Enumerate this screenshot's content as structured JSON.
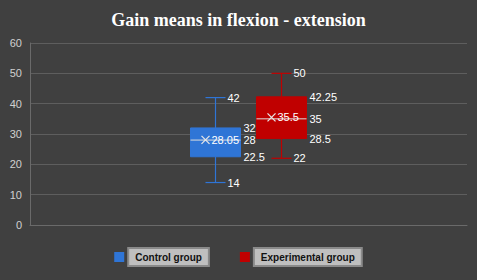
{
  "chart_data": {
    "type": "boxplot",
    "title": "Gain means in flexion - extension",
    "categories": [
      null
    ],
    "series": [
      {
        "name": "Control group",
        "color": "#2f75d6",
        "min": 14,
        "q1": 22.5,
        "median": 28,
        "q3": 32,
        "max": 42,
        "mean": 28.05
      },
      {
        "name": "Experimental group",
        "color": "#c00000",
        "min": 22,
        "q1": 28.5,
        "median": 35,
        "q3": 42.25,
        "max": 50,
        "mean": 35.5
      }
    ],
    "ylim": [
      0,
      60
    ],
    "yticks": [
      0,
      10,
      20,
      30,
      40,
      50,
      60
    ],
    "grid": true,
    "legend": "bottom",
    "data_labels": true
  }
}
